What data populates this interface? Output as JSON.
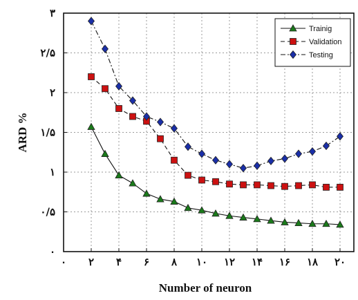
{
  "chart_data": {
    "type": "line",
    "xlabel": "Number of neuron",
    "ylabel": "ARD %",
    "xlim": [
      0,
      21
    ],
    "ylim": [
      0,
      3
    ],
    "x_ticks": [
      0,
      2,
      4,
      6,
      8,
      10,
      12,
      14,
      16,
      18,
      20
    ],
    "x_tick_labels": [
      "۰",
      "۲",
      "۴",
      "۶",
      "۸",
      "۱۰",
      "۱۲",
      "۱۴",
      "۱۶",
      "۱۸",
      "۲۰"
    ],
    "y_ticks": [
      0,
      0.5,
      1,
      1.5,
      2,
      2.5,
      3
    ],
    "y_tick_labels": [
      "۰",
      "۰/۵",
      "۱",
      "۱/۵",
      "۲",
      "۲/۵",
      "۳"
    ],
    "grid": true,
    "legend_position": "top-right",
    "x": [
      2,
      3,
      4,
      5,
      6,
      7,
      8,
      9,
      10,
      11,
      12,
      13,
      14,
      15,
      16,
      17,
      18,
      19,
      20
    ],
    "series": [
      {
        "name": "Trainig",
        "color": "#1a7a1a",
        "marker": "triangle",
        "line_style": "solid",
        "values": [
          1.57,
          1.23,
          0.96,
          0.86,
          0.73,
          0.66,
          0.63,
          0.55,
          0.52,
          0.48,
          0.45,
          0.43,
          0.41,
          0.39,
          0.37,
          0.36,
          0.35,
          0.35,
          0.34
        ]
      },
      {
        "name": "Validation",
        "color": "#cc1111",
        "marker": "square",
        "line_style": "dashed",
        "values": [
          2.2,
          2.05,
          1.8,
          1.7,
          1.64,
          1.42,
          1.15,
          0.96,
          0.9,
          0.88,
          0.85,
          0.84,
          0.84,
          0.83,
          0.82,
          0.83,
          0.84,
          0.81,
          0.81
        ]
      },
      {
        "name": "Testing",
        "color": "#1a2fa8",
        "marker": "diamond",
        "line_style": "dashdot",
        "values": [
          2.9,
          2.55,
          2.08,
          1.9,
          1.7,
          1.63,
          1.55,
          1.32,
          1.23,
          1.15,
          1.1,
          1.05,
          1.08,
          1.14,
          1.17,
          1.23,
          1.26,
          1.33,
          1.45
        ]
      }
    ]
  }
}
